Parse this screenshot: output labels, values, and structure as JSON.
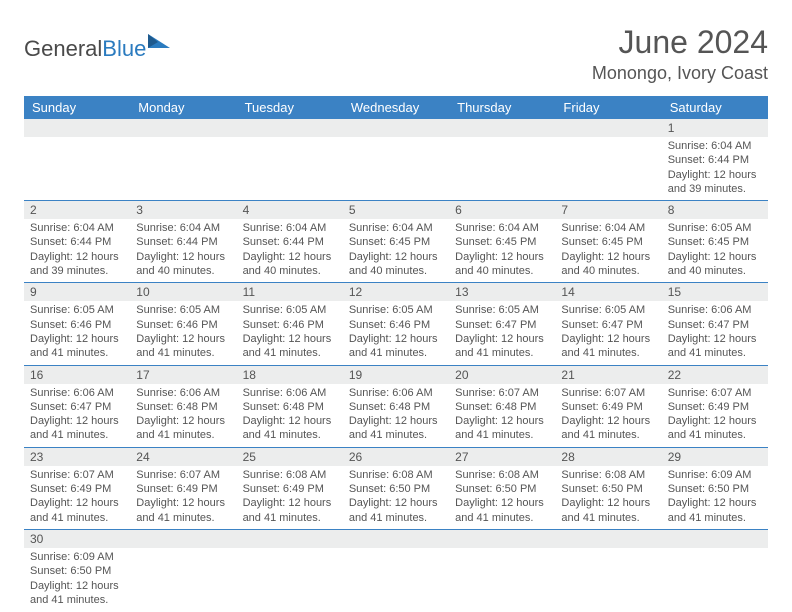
{
  "logo": {
    "text1": "General",
    "text2": "Blue"
  },
  "title": "June 2024",
  "location": "Monongo, Ivory Coast",
  "day_headers": [
    "Sunday",
    "Monday",
    "Tuesday",
    "Wednesday",
    "Thursday",
    "Friday",
    "Saturday"
  ],
  "colors": {
    "header_bg": "#3b82c4",
    "header_text": "#ffffff",
    "daynum_bg": "#eceded",
    "border": "#3b82c4",
    "text": "#555555"
  },
  "weeks": [
    [
      {
        "num": "",
        "lines": []
      },
      {
        "num": "",
        "lines": []
      },
      {
        "num": "",
        "lines": []
      },
      {
        "num": "",
        "lines": []
      },
      {
        "num": "",
        "lines": []
      },
      {
        "num": "",
        "lines": []
      },
      {
        "num": "1",
        "lines": [
          "Sunrise: 6:04 AM",
          "Sunset: 6:44 PM",
          "Daylight: 12 hours",
          "and 39 minutes."
        ]
      }
    ],
    [
      {
        "num": "2",
        "lines": [
          "Sunrise: 6:04 AM",
          "Sunset: 6:44 PM",
          "Daylight: 12 hours",
          "and 39 minutes."
        ]
      },
      {
        "num": "3",
        "lines": [
          "Sunrise: 6:04 AM",
          "Sunset: 6:44 PM",
          "Daylight: 12 hours",
          "and 40 minutes."
        ]
      },
      {
        "num": "4",
        "lines": [
          "Sunrise: 6:04 AM",
          "Sunset: 6:44 PM",
          "Daylight: 12 hours",
          "and 40 minutes."
        ]
      },
      {
        "num": "5",
        "lines": [
          "Sunrise: 6:04 AM",
          "Sunset: 6:45 PM",
          "Daylight: 12 hours",
          "and 40 minutes."
        ]
      },
      {
        "num": "6",
        "lines": [
          "Sunrise: 6:04 AM",
          "Sunset: 6:45 PM",
          "Daylight: 12 hours",
          "and 40 minutes."
        ]
      },
      {
        "num": "7",
        "lines": [
          "Sunrise: 6:04 AM",
          "Sunset: 6:45 PM",
          "Daylight: 12 hours",
          "and 40 minutes."
        ]
      },
      {
        "num": "8",
        "lines": [
          "Sunrise: 6:05 AM",
          "Sunset: 6:45 PM",
          "Daylight: 12 hours",
          "and 40 minutes."
        ]
      }
    ],
    [
      {
        "num": "9",
        "lines": [
          "Sunrise: 6:05 AM",
          "Sunset: 6:46 PM",
          "Daylight: 12 hours",
          "and 41 minutes."
        ]
      },
      {
        "num": "10",
        "lines": [
          "Sunrise: 6:05 AM",
          "Sunset: 6:46 PM",
          "Daylight: 12 hours",
          "and 41 minutes."
        ]
      },
      {
        "num": "11",
        "lines": [
          "Sunrise: 6:05 AM",
          "Sunset: 6:46 PM",
          "Daylight: 12 hours",
          "and 41 minutes."
        ]
      },
      {
        "num": "12",
        "lines": [
          "Sunrise: 6:05 AM",
          "Sunset: 6:46 PM",
          "Daylight: 12 hours",
          "and 41 minutes."
        ]
      },
      {
        "num": "13",
        "lines": [
          "Sunrise: 6:05 AM",
          "Sunset: 6:47 PM",
          "Daylight: 12 hours",
          "and 41 minutes."
        ]
      },
      {
        "num": "14",
        "lines": [
          "Sunrise: 6:05 AM",
          "Sunset: 6:47 PM",
          "Daylight: 12 hours",
          "and 41 minutes."
        ]
      },
      {
        "num": "15",
        "lines": [
          "Sunrise: 6:06 AM",
          "Sunset: 6:47 PM",
          "Daylight: 12 hours",
          "and 41 minutes."
        ]
      }
    ],
    [
      {
        "num": "16",
        "lines": [
          "Sunrise: 6:06 AM",
          "Sunset: 6:47 PM",
          "Daylight: 12 hours",
          "and 41 minutes."
        ]
      },
      {
        "num": "17",
        "lines": [
          "Sunrise: 6:06 AM",
          "Sunset: 6:48 PM",
          "Daylight: 12 hours",
          "and 41 minutes."
        ]
      },
      {
        "num": "18",
        "lines": [
          "Sunrise: 6:06 AM",
          "Sunset: 6:48 PM",
          "Daylight: 12 hours",
          "and 41 minutes."
        ]
      },
      {
        "num": "19",
        "lines": [
          "Sunrise: 6:06 AM",
          "Sunset: 6:48 PM",
          "Daylight: 12 hours",
          "and 41 minutes."
        ]
      },
      {
        "num": "20",
        "lines": [
          "Sunrise: 6:07 AM",
          "Sunset: 6:48 PM",
          "Daylight: 12 hours",
          "and 41 minutes."
        ]
      },
      {
        "num": "21",
        "lines": [
          "Sunrise: 6:07 AM",
          "Sunset: 6:49 PM",
          "Daylight: 12 hours",
          "and 41 minutes."
        ]
      },
      {
        "num": "22",
        "lines": [
          "Sunrise: 6:07 AM",
          "Sunset: 6:49 PM",
          "Daylight: 12 hours",
          "and 41 minutes."
        ]
      }
    ],
    [
      {
        "num": "23",
        "lines": [
          "Sunrise: 6:07 AM",
          "Sunset: 6:49 PM",
          "Daylight: 12 hours",
          "and 41 minutes."
        ]
      },
      {
        "num": "24",
        "lines": [
          "Sunrise: 6:07 AM",
          "Sunset: 6:49 PM",
          "Daylight: 12 hours",
          "and 41 minutes."
        ]
      },
      {
        "num": "25",
        "lines": [
          "Sunrise: 6:08 AM",
          "Sunset: 6:49 PM",
          "Daylight: 12 hours",
          "and 41 minutes."
        ]
      },
      {
        "num": "26",
        "lines": [
          "Sunrise: 6:08 AM",
          "Sunset: 6:50 PM",
          "Daylight: 12 hours",
          "and 41 minutes."
        ]
      },
      {
        "num": "27",
        "lines": [
          "Sunrise: 6:08 AM",
          "Sunset: 6:50 PM",
          "Daylight: 12 hours",
          "and 41 minutes."
        ]
      },
      {
        "num": "28",
        "lines": [
          "Sunrise: 6:08 AM",
          "Sunset: 6:50 PM",
          "Daylight: 12 hours",
          "and 41 minutes."
        ]
      },
      {
        "num": "29",
        "lines": [
          "Sunrise: 6:09 AM",
          "Sunset: 6:50 PM",
          "Daylight: 12 hours",
          "and 41 minutes."
        ]
      }
    ],
    [
      {
        "num": "30",
        "lines": [
          "Sunrise: 6:09 AM",
          "Sunset: 6:50 PM",
          "Daylight: 12 hours",
          "and 41 minutes."
        ]
      },
      {
        "num": "",
        "lines": []
      },
      {
        "num": "",
        "lines": []
      },
      {
        "num": "",
        "lines": []
      },
      {
        "num": "",
        "lines": []
      },
      {
        "num": "",
        "lines": []
      },
      {
        "num": "",
        "lines": []
      }
    ]
  ]
}
